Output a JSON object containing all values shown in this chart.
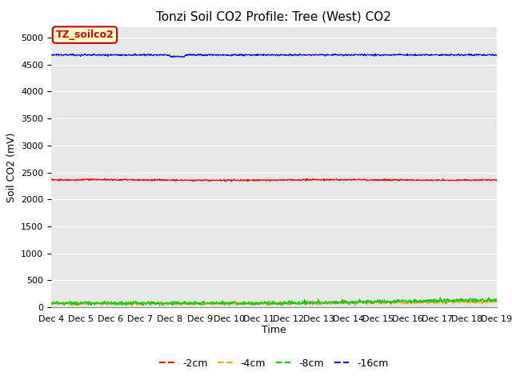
{
  "title": "Tonzi Soil CO2 Profile: Tree (West) CO2",
  "xlabel": "Time",
  "ylabel": "Soil CO2 (mV)",
  "legend_label": "TZ_soilco2",
  "series": {
    "-2cm": {
      "color": "#ff0000",
      "mean": 2360,
      "noise": 8,
      "label": "-2cm"
    },
    "-4cm": {
      "color": "#ffa500",
      "mean": 70,
      "noise": 15,
      "label": "-4cm"
    },
    "-8cm": {
      "color": "#00cc00",
      "mean": 75,
      "noise": 18,
      "label": "-8cm"
    },
    "-16cm": {
      "color": "#0000ff",
      "mean": 4680,
      "noise": 8,
      "label": "-16cm"
    }
  },
  "ylim": [
    0,
    5200
  ],
  "yticks": [
    0,
    500,
    1000,
    1500,
    2000,
    2500,
    3000,
    3500,
    4000,
    4500,
    5000
  ],
  "n_points": 1200,
  "x_start": 4,
  "x_end": 19,
  "xtick_positions": [
    4,
    5,
    6,
    7,
    8,
    9,
    10,
    11,
    12,
    13,
    14,
    15,
    16,
    17,
    18,
    19
  ],
  "xtick_labels": [
    "Dec 4",
    "Dec 5",
    "Dec 6",
    "Dec 7",
    "Dec 8",
    "Dec 9",
    "Dec 10",
    "Dec 11",
    "Dec 12",
    "Dec 13",
    "Dec 14",
    "Dec 15",
    "Dec 16",
    "Dec 17",
    "Dec 18",
    "Dec 19"
  ],
  "bg_color": "#e8e8e8",
  "fig_bg_color": "#ffffff",
  "legend_box_facecolor": "#ffffcc",
  "legend_box_edgecolor": "#cc0000",
  "legend_text_color": "#cc0000",
  "grid_color": "#ffffff",
  "title_fontsize": 11,
  "axis_label_fontsize": 9,
  "tick_fontsize": 8,
  "legend_fontsize": 9,
  "line_width": 0.8
}
